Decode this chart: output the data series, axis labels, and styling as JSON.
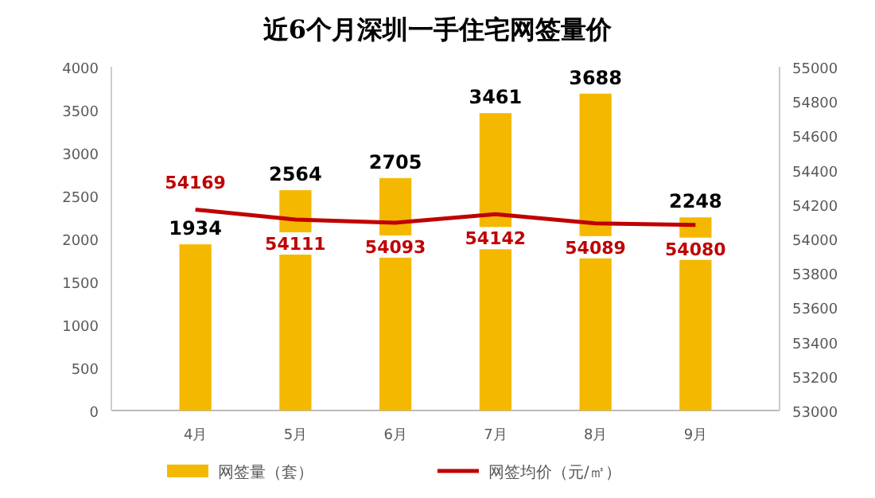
{
  "chart_data": {
    "type": "bar",
    "title": "近6个月深圳一手住宅网签量价",
    "categories": [
      "4月",
      "5月",
      "6月",
      "7月",
      "8月",
      "9月"
    ],
    "series": [
      {
        "name": "网签量（套）",
        "color": "#f5b800",
        "values": [
          1934,
          2564,
          2705,
          3461,
          3688,
          2248
        ]
      },
      {
        "name": "网签均价（元/㎡）",
        "type": "line",
        "axis": "y2",
        "color": "#c00000",
        "values": [
          54169,
          54111,
          54093,
          54142,
          54089,
          54080
        ]
      }
    ],
    "ylim": [
      0,
      4000
    ],
    "yticks": [
      0,
      500,
      1000,
      1500,
      2000,
      2500,
      3000,
      3500,
      4000
    ],
    "y2lim": [
      53000,
      55000
    ],
    "y2ticks": [
      53000,
      53200,
      53400,
      53600,
      53800,
      54000,
      54200,
      54400,
      54600,
      54800,
      55000
    ],
    "data_labels": true,
    "legend": "bottom",
    "grid": false,
    "marker": "none",
    "line_style": "solid"
  }
}
